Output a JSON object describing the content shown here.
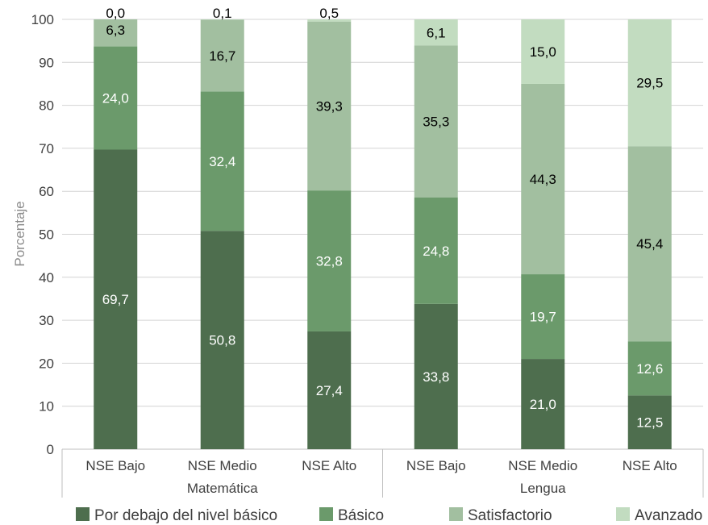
{
  "chart_data": {
    "type": "bar",
    "stacked": true,
    "title": "",
    "ylabel": "Porcentaje",
    "ylim": [
      0,
      100
    ],
    "yticks": [
      0,
      10,
      20,
      30,
      40,
      50,
      60,
      70,
      80,
      90,
      100
    ],
    "grid": true,
    "legend_position": "bottom",
    "categories": [
      "NSE Bajo",
      "NSE Medio",
      "NSE Alto",
      "NSE Bajo",
      "NSE Medio",
      "NSE Alto"
    ],
    "groups": [
      {
        "label": "Matemática",
        "categories": [
          "NSE Bajo",
          "NSE Medio",
          "NSE Alto"
        ]
      },
      {
        "label": "Lengua",
        "categories": [
          "NSE Bajo",
          "NSE Medio",
          "NSE Alto"
        ]
      }
    ],
    "series": [
      {
        "name": "Por debajo del nivel básico",
        "color": "#4e6e4e",
        "label_color": "#ffffff",
        "values": [
          69.7,
          50.8,
          27.4,
          33.8,
          21.0,
          12.5
        ],
        "labels": [
          "69,7",
          "50,8",
          "27,4",
          "33,8",
          "21,0",
          "12,5"
        ]
      },
      {
        "name": "Básico",
        "color": "#6b9a6b",
        "label_color": "#ffffff",
        "values": [
          24.0,
          32.4,
          32.8,
          24.8,
          19.7,
          12.6
        ],
        "labels": [
          "24,0",
          "32,4",
          "32,8",
          "24,8",
          "19,7",
          "12,6"
        ]
      },
      {
        "name": "Satisfactorio",
        "color": "#a2bfa0",
        "label_color": "#000000",
        "values": [
          6.3,
          16.7,
          39.3,
          35.3,
          44.3,
          45.4
        ],
        "labels": [
          "6,3",
          "16,7",
          "39,3",
          "35,3",
          "44,3",
          "45,4"
        ]
      },
      {
        "name": "Avanzado",
        "color": "#c2dcc0",
        "label_color": "#000000",
        "values": [
          0.0,
          0.1,
          0.5,
          6.1,
          15.0,
          29.5
        ],
        "labels": [
          "0,0",
          "0,1",
          "0,5",
          "6,1",
          "15,0",
          "29,5"
        ]
      }
    ]
  }
}
